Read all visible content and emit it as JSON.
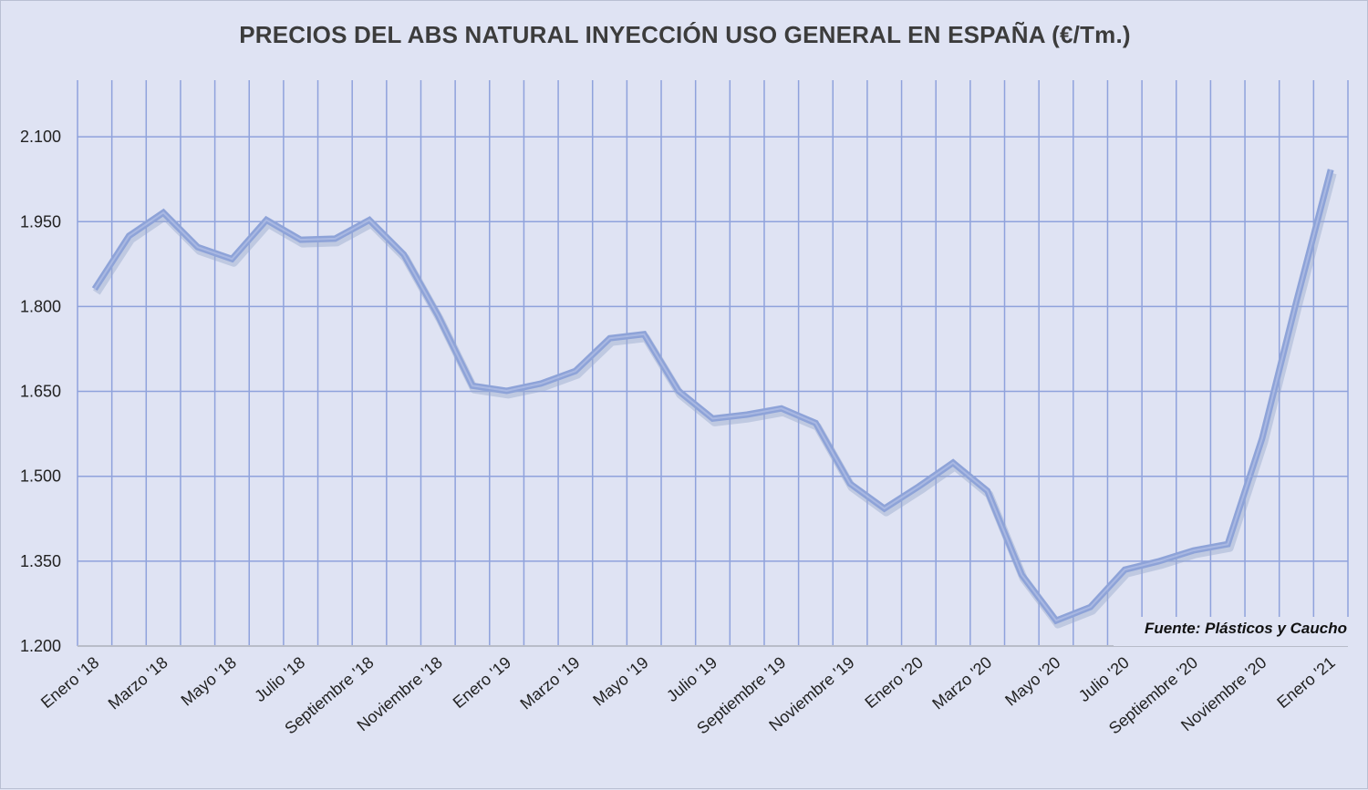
{
  "chart_data": {
    "type": "line",
    "title": "PRECIOS DEL ABS NATURAL INYECCIÓN  USO GENERAL EN ESPAÑA  (€/Tm.)",
    "xlabel": "",
    "ylabel": "",
    "ylim": [
      1200,
      2200
    ],
    "yticks": [
      1200,
      1350,
      1500,
      1650,
      1800,
      1950,
      2100
    ],
    "ytick_labels": [
      "1.200",
      "1.350",
      "1.500",
      "1.650",
      "1.800",
      "1.950",
      "2.100"
    ],
    "x_tick_labels": [
      "Enero '18",
      "Marzo '18",
      "Mayo '18",
      "Julio '18",
      "Septiembre  '18",
      "Noviembre '18",
      "Enero '19",
      "Marzo '19",
      "Mayo '19",
      "Julio '19",
      "Septiembre '19",
      "Noviembre '19",
      "Enero '20",
      "Marzo '20",
      "Mayo '20",
      "Julio '20",
      "Septiembre '20",
      "Noviembre '20",
      "Enero '21"
    ],
    "grid": true,
    "series": [
      {
        "name": "ABS natural inyección",
        "color": "#8ea3d8",
        "values": [
          1831,
          1925,
          1966,
          1905,
          1884,
          1953,
          1918,
          1920,
          1953,
          1892,
          1784,
          1660,
          1651,
          1664,
          1686,
          1744,
          1751,
          1651,
          1602,
          1609,
          1620,
          1594,
          1487,
          1443,
          1482,
          1524,
          1474,
          1326,
          1245,
          1269,
          1335,
          1350,
          1369,
          1380,
          1567,
          1809,
          2042
        ]
      }
    ],
    "annotation": "Fuente: Plásticos y Caucho"
  }
}
